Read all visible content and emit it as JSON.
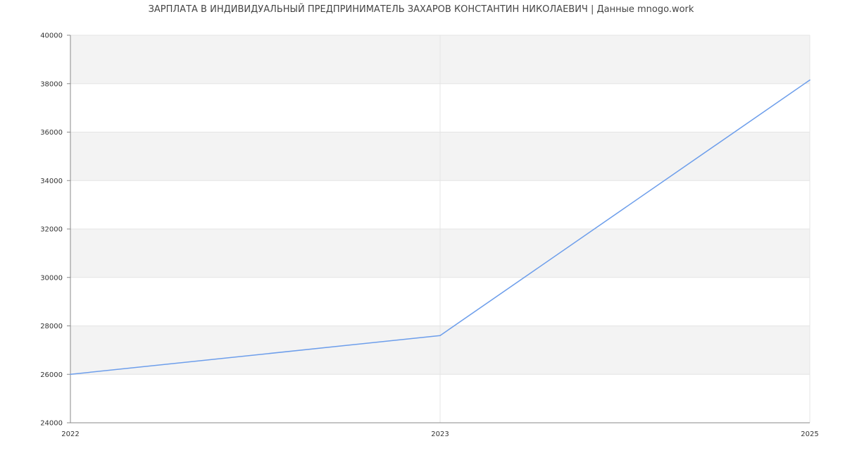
{
  "chart_data": {
    "type": "line",
    "title": "ЗАРПЛАТА В ИНДИВИДУАЛЬНЫЙ ПРЕДПРИНИМАТЕЛЬ ЗАХАРОВ КОНСТАНТИН НИКОЛАЕВИЧ | Данные mnogo.work",
    "categories": [
      "2022",
      "2023",
      "2025"
    ],
    "series": [
      {
        "values": [
          26000,
          27600,
          38150
        ],
        "color": "#6d9eeb"
      }
    ],
    "ylim": [
      24000,
      40000
    ],
    "yticks": [
      "24000",
      "26000",
      "28000",
      "30000",
      "32000",
      "34000",
      "36000",
      "38000",
      "40000"
    ],
    "grid": true,
    "band_color": "#f3f3f3"
  }
}
